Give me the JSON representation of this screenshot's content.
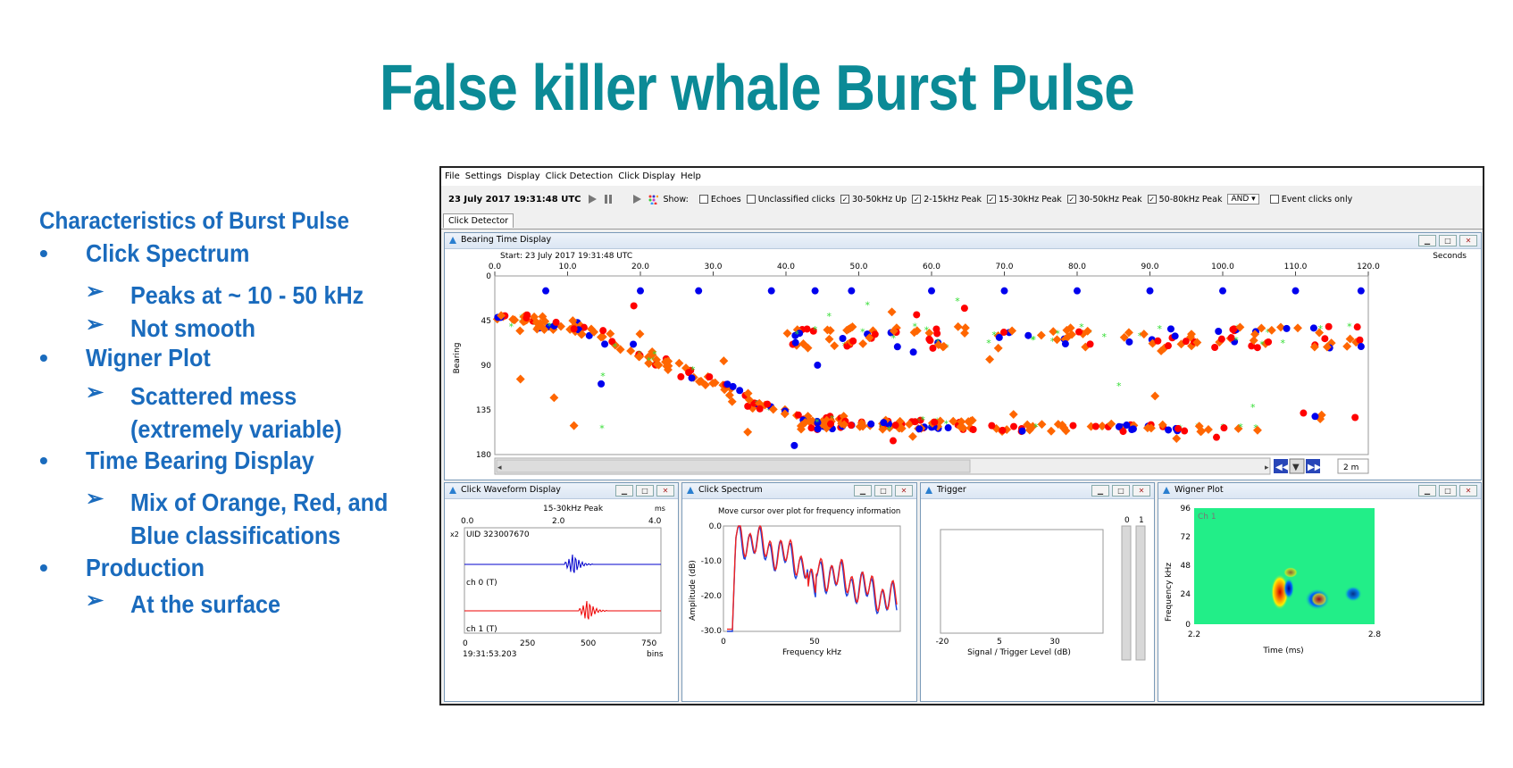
{
  "slide": {
    "title": "False killer whale Burst Pulse",
    "heading": "Characteristics of Burst Pulse",
    "bullets": [
      {
        "label": "Click Spectrum",
        "subs": [
          "Peaks at ~ 10 - 50 kHz",
          "Not smooth"
        ]
      },
      {
        "label": "Wigner Plot",
        "subs": [
          "Scattered mess",
          "(extremely variable)"
        ]
      },
      {
        "label": "Time Bearing Display",
        "subs": [
          "Mix of Orange, Red, and",
          "Blue classifications"
        ]
      },
      {
        "label": "Production",
        "subs": [
          "At the surface"
        ]
      }
    ]
  },
  "app": {
    "menu": [
      "File",
      "Settings",
      "Display",
      "Click Detection",
      "Click Display",
      "Help"
    ],
    "toolbar": {
      "datetime": "23 July 2017 19:31:48 UTC",
      "show_label": "Show:",
      "checkboxes": [
        {
          "label": "Echoes",
          "checked": false
        },
        {
          "label": "Unclassified clicks",
          "checked": false
        },
        {
          "label": "30-50kHz Up",
          "checked": true
        },
        {
          "label": "2-15kHz Peak",
          "checked": true
        },
        {
          "label": "15-30kHz Peak",
          "checked": true
        },
        {
          "label": "30-50kHz Peak",
          "checked": true
        },
        {
          "label": "50-80kHz Peak",
          "checked": true
        }
      ],
      "logic": "AND",
      "event_only": "Event clicks only"
    },
    "tab": "Click Detector",
    "bearing_panel": {
      "title": "Bearing Time Display",
      "start": "Start: 23 July 2017 19:31:48 UTC",
      "x_unit": "Seconds",
      "y_label": "Bearing",
      "x_ticks": [
        "0.0",
        "10.0",
        "20.0",
        "30.0",
        "40.0",
        "50.0",
        "60.0",
        "70.0",
        "80.0",
        "90.0",
        "100.0",
        "110.0",
        "120.0"
      ],
      "y_ticks": [
        "0",
        "45",
        "90",
        "135",
        "180"
      ],
      "time_span": "2 m"
    },
    "waveform_panel": {
      "title": "Click Waveform Display",
      "subtitle": "15-30kHz Peak",
      "top_unit": "ms",
      "top_ticks": [
        "0.0",
        "2.0",
        "4.0"
      ],
      "scale": "x2",
      "uid": "UID 323007670",
      "ch0": "ch 0 (T)",
      "ch1": "ch 1 (T)",
      "bottom_ticks": [
        "0",
        "250",
        "500",
        "750"
      ],
      "time": "19:31:53.203",
      "bottom_unit": "bins"
    },
    "spectrum_panel": {
      "title": "Click Spectrum",
      "hint": "Move cursor over plot for frequency information",
      "y_label": "Amplitude (dB)",
      "y_ticks": [
        "0.0",
        "-10.0",
        "-20.0",
        "-30.0"
      ],
      "x_ticks": [
        "0",
        "50"
      ],
      "x_label": "Frequency kHz"
    },
    "trigger_panel": {
      "title": "Trigger",
      "meters": [
        "0",
        "1"
      ],
      "x_ticks": [
        "-20",
        "5",
        "30"
      ],
      "x_label": "Signal / Trigger Level (dB)"
    },
    "wigner_panel": {
      "title": "Wigner Plot",
      "channel": "Ch 1",
      "y_label": "Frequency kHz",
      "y_ticks": [
        "96",
        "72",
        "48",
        "24",
        "0"
      ],
      "x_ticks": [
        "2.2",
        "2.8"
      ],
      "x_label": "Time (ms)"
    }
  },
  "colors": {
    "title": "#0b8a96",
    "bullets": "#1a6bbd",
    "orange": "#ff6600",
    "red": "#ff0000",
    "blue": "#0000ee",
    "green": "#33dd33"
  }
}
